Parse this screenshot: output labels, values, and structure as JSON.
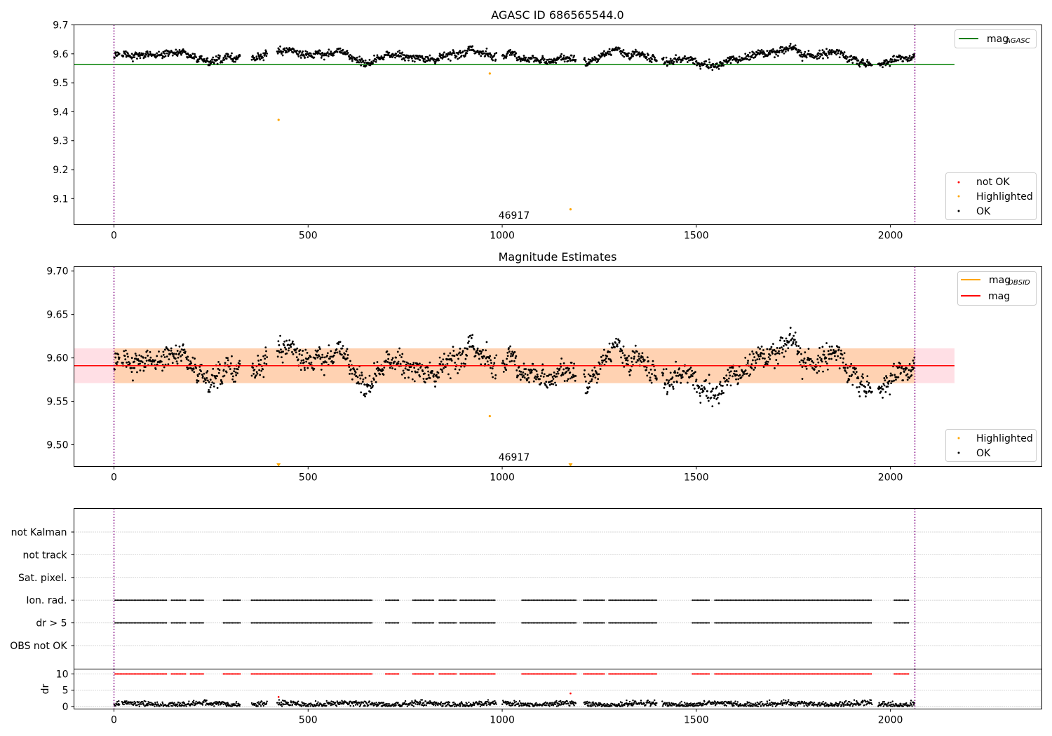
{
  "chart_data": [
    {
      "type": "scatter",
      "title": "AGASC ID 686565544.0",
      "xlim": [
        -103,
        2390
      ],
      "ylim": [
        9.01,
        9.7
      ],
      "xticks": [
        "0",
        "500",
        "1000",
        "1500",
        "2000"
      ],
      "yticks": [
        "9.1",
        "9.2",
        "9.3",
        "9.4",
        "9.5",
        "9.6",
        "9.7"
      ],
      "obsid_label": "46917",
      "obs_bounds": [
        0,
        2063
      ],
      "reference_lines": [
        {
          "name": "mag_AGASC",
          "y": 9.563,
          "x_range": [
            -103,
            2165
          ],
          "color": "#008000"
        }
      ],
      "series": [
        {
          "name": "not OK",
          "color": "#ff0000",
          "points": []
        },
        {
          "name": "Highlighted",
          "color": "#ffa500",
          "points": [
            [
              424,
              9.372
            ],
            [
              968,
              9.532
            ],
            [
              1176,
              9.063
            ]
          ]
        },
        {
          "name": "OK",
          "color": "#000000",
          "points": "dense time series, ~1600 samples spread between x 0 and 2063, magnitudes mostly between 9.54 and 9.64 (mean ~9.59)"
        }
      ],
      "legend": [
        {
          "label": "mag",
          "sub": "AGASC",
          "color": "#008000",
          "kind": "line",
          "position": "upper-right"
        },
        {
          "label": "not OK",
          "color": "#ff0000",
          "kind": "marker",
          "position": "lower-right"
        },
        {
          "label": "Highlighted",
          "color": "#ffa500",
          "kind": "marker",
          "position": "lower-right"
        },
        {
          "label": "OK",
          "color": "#000000",
          "kind": "marker",
          "position": "lower-right"
        }
      ]
    },
    {
      "type": "scatter",
      "title": "Magnitude Estimates",
      "xlim": [
        -103,
        2390
      ],
      "ylim": [
        9.475,
        9.705
      ],
      "xticks": [
        "0",
        "500",
        "1000",
        "1500",
        "2000"
      ],
      "yticks": [
        "9.50",
        "9.55",
        "9.60",
        "9.65",
        "9.70"
      ],
      "obsid_label": "46917",
      "reference_lines": [
        {
          "name": "mag_OBSID",
          "y": 9.591,
          "x_range": [
            0,
            2063
          ],
          "color": "#ffa500",
          "band": [
            9.571,
            9.611
          ]
        },
        {
          "name": "mag",
          "y": 9.591,
          "x_range": [
            -103,
            2165
          ],
          "color": "#ff0000",
          "band": [
            9.571,
            9.611
          ]
        }
      ],
      "series": [
        {
          "name": "Highlighted",
          "color": "#ffa500",
          "points": [
            [
              968,
              9.533
            ]
          ],
          "off_scale_below": [
            424,
            1176
          ]
        },
        {
          "name": "OK",
          "color": "#000000",
          "points": "same OK samples as top panel"
        }
      ],
      "legend": [
        {
          "label": "mag",
          "sub": "OBSID",
          "color": "#ffa500",
          "kind": "line",
          "position": "upper-right"
        },
        {
          "label": "mag",
          "color": "#ff0000",
          "kind": "line",
          "position": "upper-right"
        },
        {
          "label": "Highlighted",
          "color": "#ffa500",
          "kind": "marker",
          "position": "lower-right"
        },
        {
          "label": "OK",
          "color": "#000000",
          "kind": "marker",
          "position": "lower-right"
        }
      ]
    },
    {
      "type": "scatter",
      "title": "",
      "xlim": [
        -103,
        2390
      ],
      "xticks": [
        "0",
        "500",
        "1000",
        "1500",
        "2000"
      ],
      "flag_rows": [
        "not Kalman",
        "not track",
        "Sat. pixel.",
        "Ion. rad.",
        "dr > 5",
        "OBS not OK"
      ],
      "flagged_intervals": [
        [
          3,
          137
        ],
        [
          148,
          185
        ],
        [
          197,
          233
        ],
        [
          282,
          326
        ],
        [
          354,
          666
        ],
        [
          700,
          735
        ],
        [
          770,
          826
        ],
        [
          838,
          882
        ],
        [
          892,
          982
        ],
        [
          1051,
          1190
        ],
        [
          1210,
          1265
        ],
        [
          1275,
          1398
        ],
        [
          1490,
          1535
        ],
        [
          1548,
          1953
        ],
        [
          2010,
          2048
        ]
      ],
      "flagged_rows": [
        "Ion. rad.",
        "dr > 5"
      ]
    },
    {
      "type": "scatter",
      "title": "",
      "ylabel": "dr",
      "ylim": [
        -0.8,
        11.5
      ],
      "xlim": [
        -103,
        2390
      ],
      "xticks": [
        "0",
        "500",
        "1000",
        "1500",
        "2000"
      ],
      "yticks": [
        "0",
        "5",
        "10"
      ],
      "series": [
        {
          "name": "dr",
          "color": "#000000",
          "points": "dense series, dr values mostly between 0 and 2"
        },
        {
          "name": "dr clipped",
          "color": "#ff0000",
          "points": "flagged samples drawn at dr = 10 across the flagged intervals"
        },
        {
          "name": "Highlighted",
          "color": "#ff0000",
          "points": [
            [
              424,
              2.9
            ],
            [
              1176,
              4.0
            ]
          ]
        }
      ]
    }
  ]
}
